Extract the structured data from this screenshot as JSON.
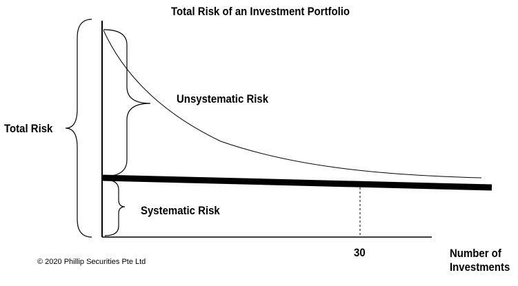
{
  "title": "Total Risk of an Investment Portfolio",
  "labels": {
    "total_risk": "Total Risk",
    "unsystematic_risk": "Unsystematic Risk",
    "systematic_risk": "Systematic Risk",
    "x_tick": "30",
    "x_axis_line1": "Number of",
    "x_axis_line2": "Investments"
  },
  "copyright": "© 2020 Phillip Securities Pte Ltd"
}
